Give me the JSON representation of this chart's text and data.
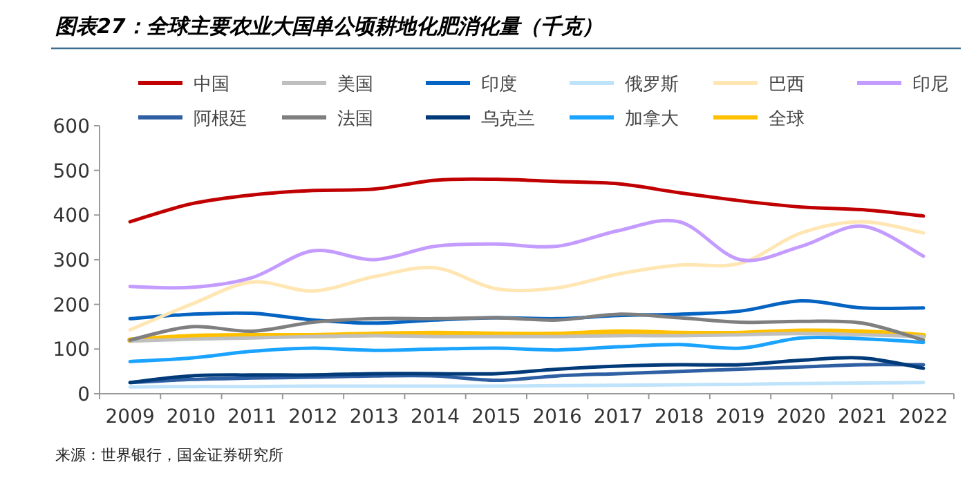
{
  "chart_data": {
    "type": "line",
    "title": "图表27：全球主要农业大国单公顷耕地化肥消化量（千克）",
    "annotations": [
      "来源：世界银行，国金证券研究所"
    ],
    "categories": [
      "2009",
      "2010",
      "2011",
      "2012",
      "2013",
      "2014",
      "2015",
      "2016",
      "2017",
      "2018",
      "2019",
      "2020",
      "2021",
      "2022"
    ],
    "ylim": [
      0,
      600
    ],
    "yticks": [
      0,
      100,
      200,
      300,
      400,
      500,
      600
    ],
    "legend": "top",
    "series": [
      {
        "name": "中国",
        "color": "#c00000",
        "values": [
          385,
          425,
          445,
          455,
          458,
          478,
          480,
          475,
          470,
          450,
          432,
          418,
          412,
          398
        ]
      },
      {
        "name": "美国",
        "color": "#bfbfbf",
        "values": [
          118,
          122,
          125,
          128,
          130,
          128,
          128,
          128,
          130,
          130,
          132,
          135,
          132,
          128
        ]
      },
      {
        "name": "印度",
        "color": "#0563c1",
        "values": [
          168,
          178,
          180,
          165,
          158,
          165,
          170,
          168,
          175,
          178,
          185,
          208,
          192,
          192
        ]
      },
      {
        "name": "俄罗斯",
        "color": "#bfe3fa",
        "values": [
          15,
          16,
          16,
          17,
          17,
          17,
          17,
          18,
          19,
          20,
          21,
          23,
          24,
          25
        ]
      },
      {
        "name": "巴西",
        "color": "#ffe6b3",
        "values": [
          143,
          200,
          250,
          230,
          262,
          282,
          235,
          237,
          268,
          288,
          292,
          360,
          385,
          360
        ]
      },
      {
        "name": "印尼",
        "color": "#c49cff",
        "values": [
          240,
          238,
          260,
          320,
          300,
          330,
          335,
          330,
          365,
          385,
          300,
          330,
          375,
          308
        ]
      },
      {
        "name": "阿根廷",
        "color": "#2e5fa3",
        "values": [
          25,
          32,
          35,
          37,
          40,
          40,
          30,
          40,
          45,
          50,
          55,
          60,
          65,
          65
        ]
      },
      {
        "name": "法国",
        "color": "#7f7f7f",
        "values": [
          120,
          150,
          140,
          160,
          168,
          168,
          170,
          165,
          178,
          170,
          160,
          162,
          158,
          120
        ]
      },
      {
        "name": "乌克兰",
        "color": "#003a78",
        "values": [
          25,
          40,
          42,
          42,
          45,
          45,
          45,
          55,
          62,
          65,
          65,
          75,
          80,
          57
        ]
      },
      {
        "name": "加拿大",
        "color": "#1aa3ff",
        "values": [
          72,
          80,
          95,
          102,
          97,
          100,
          102,
          98,
          105,
          110,
          102,
          125,
          123,
          115
        ]
      },
      {
        "name": "全球",
        "color": "#ffc000",
        "values": [
          120,
          128,
          130,
          130,
          133,
          135,
          133,
          133,
          138,
          135,
          135,
          140,
          138,
          130
        ]
      }
    ]
  }
}
